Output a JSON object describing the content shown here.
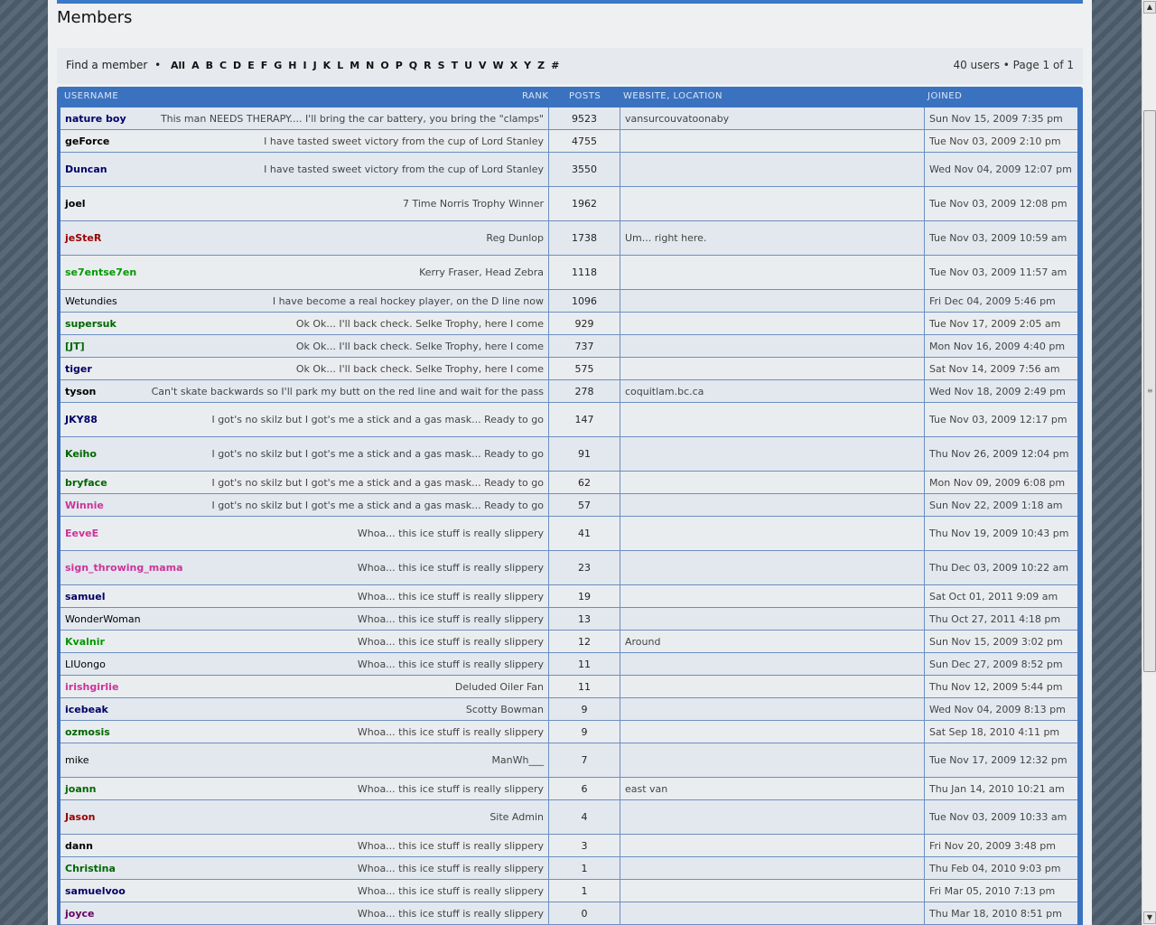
{
  "page": {
    "title": "Members"
  },
  "find_bar": {
    "label": "Find a member",
    "separator": "•",
    "letters": [
      "All",
      "A",
      "B",
      "C",
      "D",
      "E",
      "F",
      "G",
      "H",
      "I",
      "J",
      "K",
      "L",
      "M",
      "N",
      "O",
      "P",
      "Q",
      "R",
      "S",
      "T",
      "U",
      "V",
      "W",
      "X",
      "Y",
      "Z",
      "#"
    ],
    "summary": "40 users • Page 1 of 1"
  },
  "table": {
    "headers": {
      "username": "USERNAME",
      "rank": "RANK",
      "posts": "POSTS",
      "website": "WEBSITE, LOCATION",
      "joined": "JOINED"
    },
    "rows": [
      {
        "username": "nature boy",
        "color": "#000066",
        "bold": true,
        "rank": "This man NEEDS THERAPY.... I'll bring the car battery, you bring the \"clamps\"",
        "posts": "9523",
        "website": "vansurcouvatoonaby",
        "joined": "Sun Nov 15, 2009 7:35 pm",
        "tall": false
      },
      {
        "username": "geForce",
        "color": "#000000",
        "bold": true,
        "rank": "I have tasted sweet victory from the cup of Lord Stanley",
        "posts": "4755",
        "website": "",
        "joined": "Tue Nov 03, 2009 2:10 pm",
        "tall": false
      },
      {
        "username": "Duncan",
        "color": "#000066",
        "bold": true,
        "rank": "I have tasted sweet victory from the cup of Lord Stanley",
        "posts": "3550",
        "website": "",
        "joined": "Wed Nov 04, 2009 12:07 pm",
        "tall": true
      },
      {
        "username": "joel",
        "color": "#000000",
        "bold": true,
        "rank": "7 Time Norris Trophy Winner",
        "posts": "1962",
        "website": "",
        "joined": "Tue Nov 03, 2009 12:08 pm",
        "tall": true
      },
      {
        "username": "jeSteR",
        "color": "#990000",
        "bold": true,
        "rank": "Reg Dunlop",
        "posts": "1738",
        "website": "Um... right here.",
        "joined": "Tue Nov 03, 2009 10:59 am",
        "tall": true
      },
      {
        "username": "se7entse7en",
        "color": "#009900",
        "bold": true,
        "rank": "Kerry Fraser, Head Zebra",
        "posts": "1118",
        "website": "",
        "joined": "Tue Nov 03, 2009 11:57 am",
        "tall": true
      },
      {
        "username": "Wetundies",
        "color": "#000000",
        "bold": false,
        "rank": "I have become a real hockey player, on the D line now",
        "posts": "1096",
        "website": "",
        "joined": "Fri Dec 04, 2009 5:46 pm",
        "tall": false
      },
      {
        "username": "supersuk",
        "color": "#006600",
        "bold": true,
        "rank": "Ok Ok... I'll back check. Selke Trophy, here I come",
        "posts": "929",
        "website": "",
        "joined": "Tue Nov 17, 2009 2:05 am",
        "tall": false
      },
      {
        "username": "[JT]",
        "color": "#006600",
        "bold": true,
        "rank": "Ok Ok... I'll back check. Selke Trophy, here I come",
        "posts": "737",
        "website": "",
        "joined": "Mon Nov 16, 2009 4:40 pm",
        "tall": false
      },
      {
        "username": "tiger",
        "color": "#000066",
        "bold": true,
        "rank": "Ok Ok... I'll back check. Selke Trophy, here I come",
        "posts": "575",
        "website": "",
        "joined": "Sat Nov 14, 2009 7:56 am",
        "tall": false
      },
      {
        "username": "tyson",
        "color": "#000000",
        "bold": true,
        "rank": "Can't skate backwards so I'll park my butt on the red line and wait for the pass",
        "posts": "278",
        "website": "coquitlam.bc.ca",
        "joined": "Wed Nov 18, 2009 2:49 pm",
        "tall": false
      },
      {
        "username": "JKY88",
        "color": "#000066",
        "bold": true,
        "rank": "I got's no skilz but I got's me a stick and a gas mask... Ready to go",
        "posts": "147",
        "website": "",
        "joined": "Tue Nov 03, 2009 12:17 pm",
        "tall": true
      },
      {
        "username": "Keiho",
        "color": "#006600",
        "bold": true,
        "rank": "I got's no skilz but I got's me a stick and a gas mask... Ready to go",
        "posts": "91",
        "website": "",
        "joined": "Thu Nov 26, 2009 12:04 pm",
        "tall": true
      },
      {
        "username": "bryface",
        "color": "#006600",
        "bold": true,
        "rank": "I got's no skilz but I got's me a stick and a gas mask... Ready to go",
        "posts": "62",
        "website": "",
        "joined": "Mon Nov 09, 2009 6:08 pm",
        "tall": false
      },
      {
        "username": "Winnie",
        "color": "#cc3399",
        "bold": true,
        "rank": "I got's no skilz but I got's me a stick and a gas mask... Ready to go",
        "posts": "57",
        "website": "",
        "joined": "Sun Nov 22, 2009 1:18 am",
        "tall": false
      },
      {
        "username": "EeveE",
        "color": "#cc3399",
        "bold": true,
        "rank": "Whoa... this ice stuff is really slippery",
        "posts": "41",
        "website": "",
        "joined": "Thu Nov 19, 2009 10:43 pm",
        "tall": true
      },
      {
        "username": "sign_throwing_mama",
        "color": "#cc3399",
        "bold": true,
        "rank": "Whoa... this ice stuff is really slippery",
        "posts": "23",
        "website": "",
        "joined": "Thu Dec 03, 2009 10:22 am",
        "tall": true
      },
      {
        "username": "samuel",
        "color": "#000066",
        "bold": true,
        "rank": "Whoa... this ice stuff is really slippery",
        "posts": "19",
        "website": "",
        "joined": "Sat Oct 01, 2011 9:09 am",
        "tall": false
      },
      {
        "username": "WonderWoman",
        "color": "#000000",
        "bold": false,
        "rank": "Whoa... this ice stuff is really slippery",
        "posts": "13",
        "website": "",
        "joined": "Thu Oct 27, 2011 4:18 pm",
        "tall": false
      },
      {
        "username": "Kvalnir",
        "color": "#009900",
        "bold": true,
        "rank": "Whoa... this ice stuff is really slippery",
        "posts": "12",
        "website": "Around",
        "joined": "Sun Nov 15, 2009 3:02 pm",
        "tall": false
      },
      {
        "username": "LIUongo",
        "color": "#000000",
        "bold": false,
        "rank": "Whoa... this ice stuff is really slippery",
        "posts": "11",
        "website": "",
        "joined": "Sun Dec 27, 2009 8:52 pm",
        "tall": false
      },
      {
        "username": "irishgirlie",
        "color": "#cc3399",
        "bold": true,
        "rank": "Deluded Oiler Fan",
        "posts": "11",
        "website": "",
        "joined": "Thu Nov 12, 2009 5:44 pm",
        "tall": false
      },
      {
        "username": "icebeak",
        "color": "#000066",
        "bold": true,
        "rank": "Scotty Bowman",
        "posts": "9",
        "website": "",
        "joined": "Wed Nov 04, 2009 8:13 pm",
        "tall": false
      },
      {
        "username": "ozmosis",
        "color": "#006600",
        "bold": true,
        "rank": "Whoa... this ice stuff is really slippery",
        "posts": "9",
        "website": "",
        "joined": "Sat Sep 18, 2010 4:11 pm",
        "tall": false
      },
      {
        "username": "mike",
        "color": "#000000",
        "bold": false,
        "rank": "ManWh___",
        "posts": "7",
        "website": "",
        "joined": "Tue Nov 17, 2009 12:32 pm",
        "tall": true
      },
      {
        "username": "joann",
        "color": "#006600",
        "bold": true,
        "rank": "Whoa... this ice stuff is really slippery",
        "posts": "6",
        "website": "east van",
        "joined": "Thu Jan 14, 2010 10:21 am",
        "tall": false
      },
      {
        "username": "Jason",
        "color": "#990000",
        "bold": true,
        "rank": "Site Admin",
        "posts": "4",
        "website": "",
        "joined": "Tue Nov 03, 2009 10:33 am",
        "tall": true
      },
      {
        "username": "dann",
        "color": "#000000",
        "bold": true,
        "rank": "Whoa... this ice stuff is really slippery",
        "posts": "3",
        "website": "",
        "joined": "Fri Nov 20, 2009 3:48 pm",
        "tall": false
      },
      {
        "username": "Christina",
        "color": "#006600",
        "bold": true,
        "rank": "Whoa... this ice stuff is really slippery",
        "posts": "1",
        "website": "",
        "joined": "Thu Feb 04, 2010 9:03 pm",
        "tall": false
      },
      {
        "username": "samuelvoo",
        "color": "#000066",
        "bold": true,
        "rank": "Whoa... this ice stuff is really slippery",
        "posts": "1",
        "website": "",
        "joined": "Fri Mar 05, 2010 7:13 pm",
        "tall": false
      },
      {
        "username": "joyce",
        "color": "#660066",
        "bold": true,
        "rank": "Whoa... this ice stuff is really slippery",
        "posts": "0",
        "website": "",
        "joined": "Thu Mar 18, 2010 8:51 pm",
        "tall": false
      }
    ]
  },
  "scrollbar": {
    "up_icon": "arrow-up-icon",
    "down_icon": "arrow-down-icon"
  }
}
